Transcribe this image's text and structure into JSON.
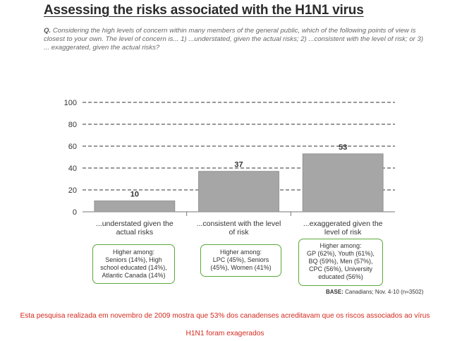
{
  "title": "Assessing the risks associated with the H1N1 virus",
  "question": {
    "prefix": "Q.",
    "text": "Considering the high levels of concern within many members of the general public, which of the following points of view is closest to your own.  The level of concern is... 1) ...understated, given the actual risks;  2) ...consistent with the level of risk; or 3) ... exaggerated, given the actual risks?"
  },
  "chart_data": {
    "type": "bar",
    "categories": [
      "...understated given the actual risks",
      "...consistent with the level of risk",
      "...exaggerated given the level of risk"
    ],
    "values": [
      10,
      37,
      53
    ],
    "data_labels": [
      "10",
      "37",
      "53"
    ],
    "yticks": [
      0,
      20,
      40,
      60,
      80,
      100
    ],
    "ylim": [
      0,
      100
    ],
    "grid": "dashed horizontal",
    "bar_color": "#a6a6a6",
    "title": "",
    "xlabel": "",
    "ylabel": ""
  },
  "callouts": [
    {
      "head": "Higher among:",
      "lines": [
        "Seniors (14%), High",
        "school educated (14%),",
        "Atlantic Canada (14%)"
      ]
    },
    {
      "head": "Higher among:",
      "lines": [
        "LPC (45%), Seniors",
        "(45%), Women (41%)"
      ]
    },
    {
      "head": "Higher among:",
      "lines": [
        "GP (62%), Youth (61%),",
        "BQ (59%), Men (57%),",
        "CPC (56%), University",
        "educated (56%)"
      ]
    }
  ],
  "base": {
    "label": "BASE:",
    "text": "Canadians; Nov. 4-10 (n=3502)"
  },
  "caption": {
    "line1": "Esta pesquisa realizada em novembro de 2009 mostra que 53% dos canadenses acreditavam que os riscos associados ao vírus",
    "line2": "H1N1 foram exagerados"
  },
  "colors": {
    "accent_green": "#5aa83a",
    "caption_red": "#d42a1e",
    "bar": "#a6a6a6"
  }
}
